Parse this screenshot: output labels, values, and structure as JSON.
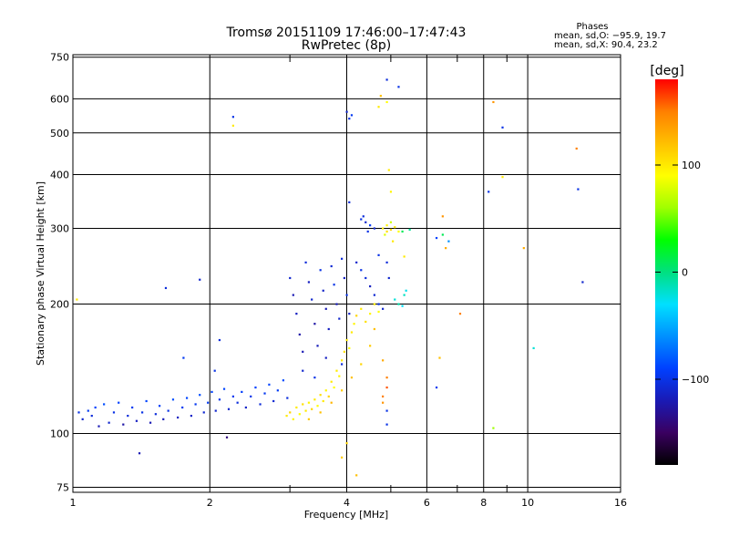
{
  "chart_data": {
    "type": "scatter",
    "title": "Tromsø 20151109 17:46:00–17:47:43",
    "subtitle": "RwPretec (8p)",
    "xlabel": "Frequency [MHz]",
    "ylabel": "Stationary phase Virtual Height [km]",
    "x_scale": "log",
    "y_scale": "log",
    "xlim": [
      1,
      16
    ],
    "ylim": [
      73,
      760
    ],
    "x_ticks": [
      1,
      2,
      4,
      6,
      8,
      10,
      16
    ],
    "x_tick_labels": [
      "1",
      "2",
      "4",
      "6",
      "8",
      "10",
      "16"
    ],
    "x_minor_ticks": [
      3,
      5,
      7,
      9
    ],
    "y_ticks": [
      75,
      100,
      200,
      300,
      400,
      500,
      600,
      750
    ],
    "y_tick_labels": [
      "75",
      "100",
      "200",
      "300",
      "400",
      "500",
      "600",
      "750"
    ],
    "grid": true,
    "phase_box": {
      "title": "Phases",
      "line_o": "mean, sd,O: −95.9, 19.7",
      "line_x": "mean, sd,X:  90.4, 23.2"
    },
    "colorbar": {
      "unit": "[deg]",
      "range": [
        -180,
        180
      ],
      "ticks": [
        100,
        0,
        -100
      ],
      "tick_labels": [
        "100",
        "0",
        "−100"
      ],
      "stops": [
        "#000000",
        "#3a0060",
        "#1a1ab4",
        "#0040ff",
        "#0090ff",
        "#00e0ff",
        "#00e080",
        "#00ff00",
        "#a0ff00",
        "#ffff00",
        "#ffc000",
        "#ff8000",
        "#ff0000"
      ]
    },
    "series": [
      {
        "points": [
          [
            1.03,
            112,
            -100
          ],
          [
            1.05,
            108,
            -110
          ],
          [
            1.08,
            113,
            -95
          ],
          [
            1.1,
            110,
            -105
          ],
          [
            1.12,
            115,
            -90
          ],
          [
            1.14,
            104,
            -120
          ],
          [
            1.17,
            117,
            -85
          ],
          [
            1.2,
            106,
            -110
          ],
          [
            1.23,
            112,
            -100
          ],
          [
            1.26,
            118,
            -90
          ],
          [
            1.29,
            105,
            -125
          ],
          [
            1.32,
            110,
            -105
          ],
          [
            1.35,
            115,
            -95
          ],
          [
            1.38,
            107,
            -115
          ],
          [
            1.42,
            112,
            -100
          ],
          [
            1.45,
            119,
            -88
          ],
          [
            1.48,
            106,
            -120
          ],
          [
            1.52,
            111,
            -105
          ],
          [
            1.55,
            116,
            -92
          ],
          [
            1.58,
            108,
            -118
          ],
          [
            1.62,
            113,
            -100
          ],
          [
            1.66,
            120,
            -85
          ],
          [
            1.7,
            109,
            -115
          ],
          [
            1.74,
            115,
            -95
          ],
          [
            1.78,
            121,
            -88
          ],
          [
            1.82,
            110,
            -112
          ],
          [
            1.86,
            117,
            -96
          ],
          [
            1.9,
            123,
            -86
          ],
          [
            1.94,
            112,
            -108
          ],
          [
            1.98,
            118,
            -95
          ],
          [
            2.02,
            125,
            -90
          ],
          [
            2.06,
            113,
            -110
          ],
          [
            2.1,
            120,
            -98
          ],
          [
            2.15,
            127,
            -88
          ],
          [
            2.2,
            114,
            -110
          ],
          [
            2.25,
            122,
            -96
          ],
          [
            2.3,
            118,
            -104
          ],
          [
            2.35,
            125,
            -92
          ],
          [
            2.4,
            115,
            -112
          ],
          [
            2.46,
            122,
            -98
          ],
          [
            2.52,
            128,
            -90
          ],
          [
            2.58,
            117,
            -106
          ],
          [
            2.64,
            124,
            -96
          ],
          [
            2.7,
            130,
            -88
          ],
          [
            2.76,
            119,
            -108
          ],
          [
            2.82,
            126,
            -94
          ],
          [
            2.9,
            133,
            -86
          ],
          [
            2.96,
            121,
            -104
          ],
          [
            1.6,
            218,
            -105
          ],
          [
            1.9,
            228,
            -110
          ],
          [
            2.25,
            545,
            -100
          ],
          [
            2.18,
            98,
            -140
          ],
          [
            1.4,
            90,
            -120
          ],
          [
            1.75,
            150,
            -95
          ],
          [
            2.05,
            140,
            -100
          ],
          [
            2.1,
            165,
            -105
          ],
          [
            3.0,
            230,
            -110
          ],
          [
            3.05,
            210,
            -120
          ],
          [
            3.1,
            190,
            -115
          ],
          [
            3.15,
            170,
            -125
          ],
          [
            3.2,
            155,
            -120
          ],
          [
            3.25,
            250,
            -105
          ],
          [
            3.3,
            225,
            -115
          ],
          [
            3.35,
            205,
            -110
          ],
          [
            3.4,
            180,
            -125
          ],
          [
            3.45,
            160,
            -118
          ],
          [
            3.5,
            240,
            -100
          ],
          [
            3.55,
            215,
            -112
          ],
          [
            3.6,
            195,
            -120
          ],
          [
            3.65,
            175,
            -115
          ],
          [
            3.7,
            245,
            -108
          ],
          [
            3.75,
            222,
            -100
          ],
          [
            3.8,
            200,
            -118
          ],
          [
            3.85,
            185,
            -110
          ],
          [
            3.9,
            255,
            -105
          ],
          [
            3.95,
            230,
            -115
          ],
          [
            4.0,
            210,
            -100
          ],
          [
            4.05,
            190,
            -112
          ],
          [
            3.2,
            140,
            -110
          ],
          [
            3.4,
            135,
            -100
          ],
          [
            3.6,
            150,
            -115
          ],
          [
            3.9,
            145,
            -105
          ],
          [
            4.0,
            560,
            -110
          ],
          [
            4.05,
            540,
            -100
          ],
          [
            4.1,
            550,
            -95
          ],
          [
            4.05,
            345,
            -105
          ],
          [
            4.3,
            315,
            -100
          ],
          [
            4.4,
            310,
            -110
          ],
          [
            4.5,
            305,
            -95
          ],
          [
            4.35,
            320,
            -105
          ],
          [
            4.45,
            295,
            -100
          ],
          [
            4.6,
            300,
            -110
          ],
          [
            4.9,
            665,
            -105
          ],
          [
            5.2,
            640,
            -100
          ],
          [
            4.2,
            250,
            -110
          ],
          [
            4.3,
            240,
            -100
          ],
          [
            4.4,
            230,
            -105
          ],
          [
            4.5,
            220,
            -115
          ],
          [
            4.6,
            210,
            -108
          ],
          [
            4.7,
            200,
            -100
          ],
          [
            4.8,
            195,
            -110
          ],
          [
            4.7,
            260,
            -100
          ],
          [
            4.9,
            250,
            -105
          ],
          [
            4.95,
            230,
            -110
          ],
          [
            5.1,
            205,
            -20
          ],
          [
            5.2,
            200,
            -10
          ],
          [
            5.3,
            198,
            -30
          ],
          [
            5.35,
            210,
            -15
          ],
          [
            5.4,
            215,
            -25
          ],
          [
            5.3,
            295,
            10
          ],
          [
            5.5,
            298,
            -5
          ],
          [
            6.3,
            285,
            -90
          ],
          [
            6.5,
            290,
            10
          ],
          [
            6.7,
            280,
            -60
          ],
          [
            8.8,
            515,
            -100
          ],
          [
            8.2,
            365,
            -100
          ],
          [
            12.9,
            370,
            -100
          ],
          [
            13.2,
            225,
            -110
          ],
          [
            10.3,
            158,
            -20
          ],
          [
            6.3,
            128,
            -95
          ],
          [
            4.9,
            113,
            -100
          ],
          [
            4.9,
            105,
            -100
          ]
        ]
      },
      {
        "points": [
          [
            2.95,
            110,
            100
          ],
          [
            3.0,
            112,
            110
          ],
          [
            3.05,
            108,
            95
          ],
          [
            3.1,
            115,
            100
          ],
          [
            3.15,
            111,
            90
          ],
          [
            3.2,
            117,
            105
          ],
          [
            3.25,
            113,
            100
          ],
          [
            3.3,
            118,
            95
          ],
          [
            3.35,
            114,
            110
          ],
          [
            3.4,
            120,
            100
          ],
          [
            3.45,
            116,
            90
          ],
          [
            3.5,
            123,
            105
          ],
          [
            3.55,
            119,
            100
          ],
          [
            3.6,
            126,
            95
          ],
          [
            3.65,
            122,
            110
          ],
          [
            3.7,
            132,
            100
          ],
          [
            3.75,
            128,
            90
          ],
          [
            3.8,
            140,
            100
          ],
          [
            3.85,
            136,
            95
          ],
          [
            3.9,
            148,
            100
          ],
          [
            3.95,
            155,
            105
          ],
          [
            4.0,
            165,
            100
          ],
          [
            4.05,
            158,
            90
          ],
          [
            4.1,
            172,
            100
          ],
          [
            4.15,
            180,
            95
          ],
          [
            4.2,
            188,
            110
          ],
          [
            4.3,
            195,
            100
          ],
          [
            4.4,
            182,
            105
          ],
          [
            4.5,
            190,
            95
          ],
          [
            4.6,
            200,
            100
          ],
          [
            4.7,
            192,
            90
          ],
          [
            3.3,
            108,
            115
          ],
          [
            3.5,
            112,
            120
          ],
          [
            3.7,
            118,
            125
          ],
          [
            3.9,
            126,
            115
          ],
          [
            4.1,
            135,
            120
          ],
          [
            4.3,
            145,
            110
          ],
          [
            4.5,
            160,
            115
          ],
          [
            4.6,
            175,
            120
          ],
          [
            4.8,
            300,
            100
          ],
          [
            4.9,
            305,
            95
          ],
          [
            5.0,
            298,
            110
          ],
          [
            5.1,
            302,
            100
          ],
          [
            5.2,
            295,
            90
          ],
          [
            4.85,
            290,
            80
          ],
          [
            5.0,
            310,
            75
          ],
          [
            5.05,
            280,
            100
          ],
          [
            4.95,
            410,
            100
          ],
          [
            5.0,
            365,
            95
          ],
          [
            4.9,
            295,
            105
          ],
          [
            5.35,
            258,
            100
          ],
          [
            4.75,
            610,
            120
          ],
          [
            4.7,
            575,
            100
          ],
          [
            4.9,
            590,
            90
          ],
          [
            4.2,
            80,
            120
          ],
          [
            3.9,
            88,
            115
          ],
          [
            4.0,
            95,
            110
          ],
          [
            4.8,
            118,
            140
          ],
          [
            4.8,
            122,
            150
          ],
          [
            4.9,
            128,
            160
          ],
          [
            4.9,
            135,
            150
          ],
          [
            4.8,
            148,
            130
          ],
          [
            6.5,
            320,
            140
          ],
          [
            6.6,
            270,
            130
          ],
          [
            7.1,
            190,
            150
          ],
          [
            6.4,
            150,
            120
          ],
          [
            8.4,
            590,
            140
          ],
          [
            8.8,
            395,
            100
          ],
          [
            9.8,
            270,
            130
          ],
          [
            12.8,
            460,
            150
          ],
          [
            2.25,
            520,
            100
          ],
          [
            1.02,
            205,
            100
          ],
          [
            8.4,
            103,
            60
          ]
        ]
      }
    ]
  }
}
